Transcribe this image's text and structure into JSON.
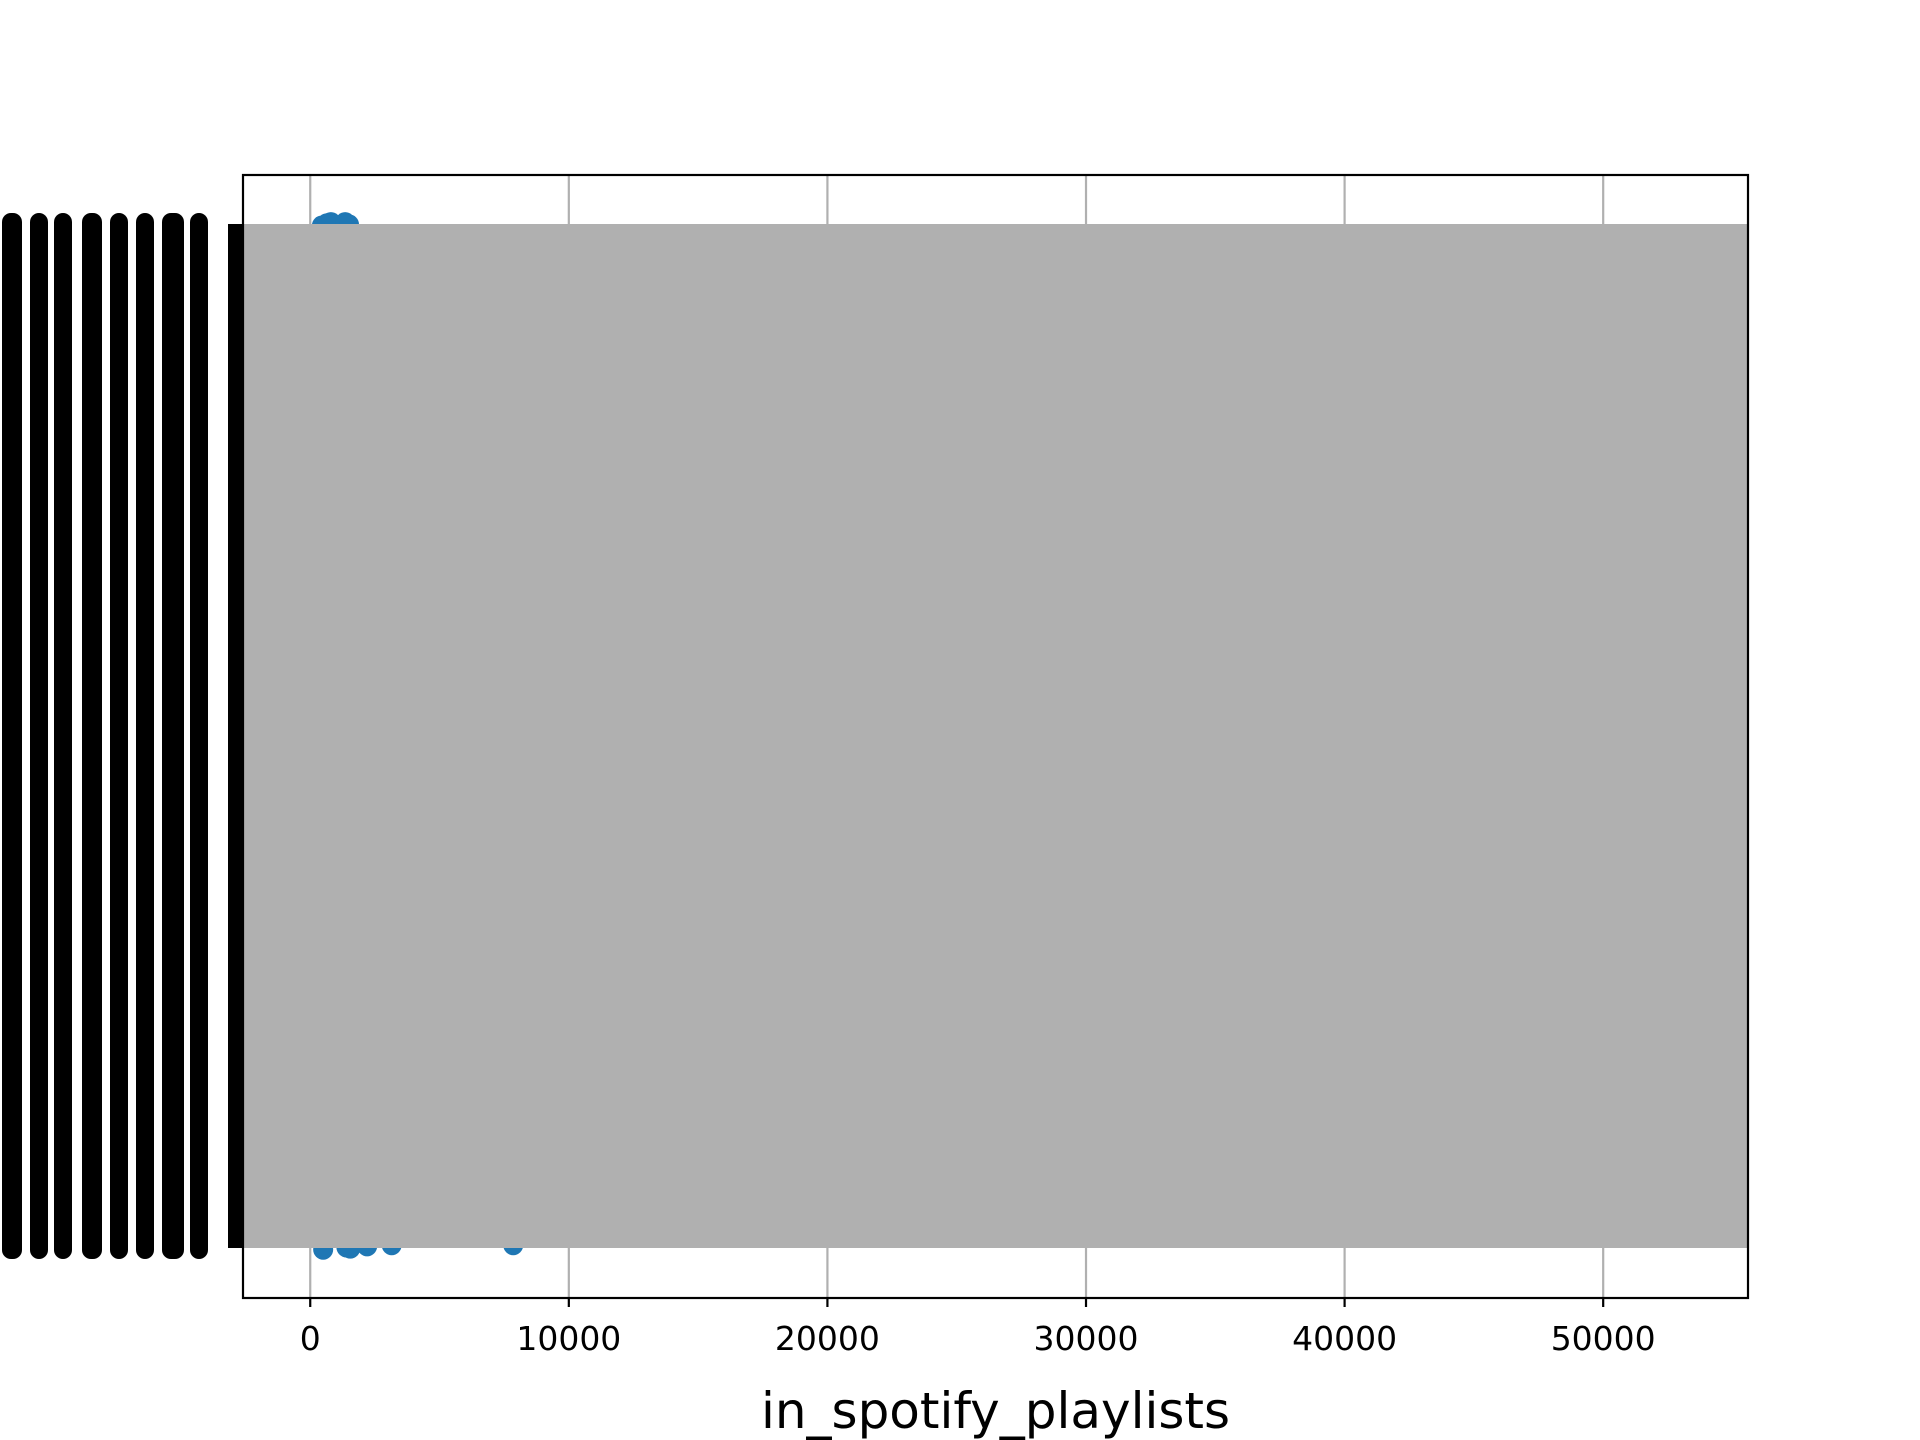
{
  "chart_data": {
    "type": "scatter",
    "title": "",
    "xlabel": "in_spotify_playlists",
    "ylabel": "",
    "xlim": [
      -2600,
      55600
    ],
    "ylim": [
      0,
      1
    ],
    "grid": true,
    "xticks": [
      0,
      10000,
      20000,
      30000,
      40000,
      50000
    ],
    "xtick_labels": [
      "0",
      "10000",
      "20000",
      "30000",
      "40000",
      "50000"
    ],
    "ytick_labels_legible": false,
    "y_categories_count": 953,
    "occluding_band": true,
    "series": [
      {
        "values_visible_top": [
          {
            "x": 450,
            "y": 0.955
          },
          {
            "x": 650,
            "y": 0.957
          },
          {
            "x": 800,
            "y": 0.958
          },
          {
            "x": 950,
            "y": 0.956
          },
          {
            "x": 1350,
            "y": 0.958
          },
          {
            "x": 1500,
            "y": 0.956
          }
        ],
        "values_visible_bottom": [
          {
            "x": 500,
            "y": 0.043
          },
          {
            "x": 1400,
            "y": 0.045
          },
          {
            "x": 1550,
            "y": 0.044
          },
          {
            "x": 2200,
            "y": 0.046
          },
          {
            "x": 3150,
            "y": 0.047
          },
          {
            "x": 7850,
            "y": 0.047
          }
        ]
      }
    ],
    "colors": {
      "points": "#1f77b4",
      "band": "#b0b0b0",
      "ticks": "#000000"
    }
  }
}
